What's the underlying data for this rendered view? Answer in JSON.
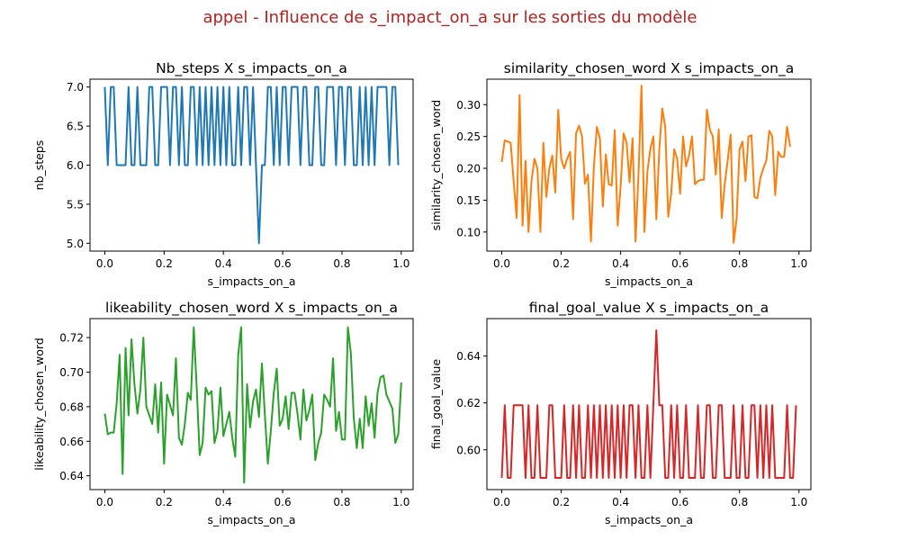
{
  "figure": {
    "title": "appel - Influence de s_impact_on_a sur les sorties du modèle",
    "title_color": "#b22222"
  },
  "chart_data": [
    {
      "type": "line",
      "title": "Nb_steps X s_impacts_on_a",
      "xlabel": "s_impacts_on_a",
      "ylabel": "nb_steps",
      "color": "#1f77b4",
      "xlim": [
        -0.05,
        1.04
      ],
      "ylim": [
        4.9,
        7.1
      ],
      "xticks": [
        0.0,
        0.2,
        0.4,
        0.6,
        0.8,
        1.0
      ],
      "xtick_labels": [
        "0.0",
        "0.2",
        "0.4",
        "0.6",
        "0.8",
        "1.0"
      ],
      "yticks": [
        5.0,
        5.5,
        6.0,
        6.5,
        7.0
      ],
      "ytick_labels": [
        "5.0",
        "5.5",
        "6.0",
        "6.5",
        "7.0"
      ],
      "x_start": 0.0,
      "x_step": 0.01,
      "values": [
        7,
        6,
        7,
        7,
        6,
        6,
        6,
        6,
        7,
        6,
        6,
        7,
        6,
        6,
        6,
        7,
        7,
        6,
        6,
        7,
        7,
        7,
        6,
        7,
        7,
        6,
        7,
        6,
        6,
        7,
        7,
        6,
        7,
        6,
        7,
        6,
        7,
        6,
        7,
        6,
        7,
        6,
        7,
        6,
        6,
        7,
        6,
        7,
        7,
        6,
        7,
        6,
        5,
        6,
        6,
        7,
        7,
        6,
        7,
        6,
        7,
        7,
        6,
        7,
        7,
        7,
        6,
        7,
        7,
        6,
        6,
        7,
        7,
        6,
        6,
        7,
        7,
        7,
        6,
        7,
        7,
        6,
        7,
        7,
        6,
        6,
        7,
        6,
        7,
        6,
        7,
        6,
        7,
        7,
        7,
        7,
        6,
        7,
        7,
        6
      ]
    },
    {
      "type": "line",
      "title": "similarity_chosen_word X s_impacts_on_a",
      "xlabel": "s_impacts_on_a",
      "ylabel": "similarity_chosen_word",
      "color": "#ff7f0e",
      "xlim": [
        -0.05,
        1.04
      ],
      "ylim": [
        0.07,
        0.34
      ],
      "xticks": [
        0.0,
        0.2,
        0.4,
        0.6,
        0.8,
        1.0
      ],
      "xtick_labels": [
        "0.0",
        "0.2",
        "0.4",
        "0.6",
        "0.8",
        "1.0"
      ],
      "yticks": [
        0.1,
        0.15,
        0.2,
        0.25,
        0.3
      ],
      "ytick_labels": [
        "0.10",
        "0.15",
        "0.20",
        "0.25",
        "0.30"
      ],
      "x_start": 0.0,
      "x_step": 0.01,
      "values": [
        0.21,
        0.244,
        0.242,
        0.24,
        0.18,
        0.122,
        0.315,
        0.11,
        0.212,
        0.1,
        0.18,
        0.215,
        0.2,
        0.1,
        0.24,
        0.155,
        0.2,
        0.22,
        0.162,
        0.292,
        0.215,
        0.2,
        0.215,
        0.226,
        0.12,
        0.255,
        0.267,
        0.25,
        0.176,
        0.19,
        0.085,
        0.204,
        0.265,
        0.247,
        0.14,
        0.222,
        0.175,
        0.173,
        0.26,
        0.11,
        0.173,
        0.255,
        0.24,
        0.178,
        0.247,
        0.085,
        0.19,
        0.33,
        0.1,
        0.195,
        0.231,
        0.25,
        0.12,
        0.23,
        0.294,
        0.265,
        0.124,
        0.16,
        0.23,
        0.215,
        0.16,
        0.25,
        0.203,
        0.22,
        0.25,
        0.175,
        0.18,
        0.182,
        0.182,
        0.292,
        0.261,
        0.25,
        0.19,
        0.261,
        0.122,
        0.175,
        0.212,
        0.253,
        0.083,
        0.12,
        0.23,
        0.242,
        0.18,
        0.25,
        0.252,
        0.155,
        0.153,
        0.185,
        0.2,
        0.212,
        0.259,
        0.25,
        0.158,
        0.226,
        0.218,
        0.218,
        0.265,
        0.234
      ]
    },
    {
      "type": "line",
      "title": "likeability_chosen_word X s_impacts_on_a",
      "xlabel": "s_impacts_on_a",
      "ylabel": "likeability_chosen_word",
      "color": "#2ca02c",
      "xlim": [
        -0.05,
        1.04
      ],
      "ylim": [
        0.632,
        0.731
      ],
      "xticks": [
        0.0,
        0.2,
        0.4,
        0.6,
        0.8,
        1.0
      ],
      "xtick_labels": [
        "0.0",
        "0.2",
        "0.4",
        "0.6",
        "0.8",
        "1.0"
      ],
      "yticks": [
        0.64,
        0.66,
        0.68,
        0.7,
        0.72
      ],
      "ytick_labels": [
        "0.64",
        "0.66",
        "0.68",
        "0.70",
        "0.72"
      ],
      "x_start": 0.0,
      "x_step": 0.01,
      "values": [
        0.676,
        0.664,
        0.665,
        0.665,
        0.682,
        0.71,
        0.641,
        0.714,
        0.675,
        0.719,
        0.693,
        0.676,
        0.69,
        0.72,
        0.68,
        0.675,
        0.67,
        0.693,
        0.665,
        0.694,
        0.647,
        0.687,
        0.681,
        0.675,
        0.708,
        0.662,
        0.658,
        0.67,
        0.688,
        0.684,
        0.726,
        0.691,
        0.652,
        0.659,
        0.691,
        0.687,
        0.689,
        0.659,
        0.666,
        0.691,
        0.663,
        0.67,
        0.677,
        0.662,
        0.651,
        0.71,
        0.726,
        0.636,
        0.693,
        0.668,
        0.683,
        0.69,
        0.674,
        0.705,
        0.675,
        0.647,
        0.666,
        0.688,
        0.702,
        0.669,
        0.673,
        0.686,
        0.667,
        0.688,
        0.688,
        0.676,
        0.661,
        0.69,
        0.672,
        0.678,
        0.687,
        0.649,
        0.659,
        0.665,
        0.687,
        0.684,
        0.68,
        0.708,
        0.666,
        0.677,
        0.661,
        0.661,
        0.726,
        0.711,
        0.673,
        0.656,
        0.673,
        0.656,
        0.686,
        0.669,
        0.682,
        0.662,
        0.688,
        0.697,
        0.698,
        0.687,
        0.683,
        0.679,
        0.659,
        0.664,
        0.694
      ]
    },
    {
      "type": "line",
      "title": "final_goal_value X s_impacts_on_a",
      "xlabel": "s_impacts_on_a",
      "ylabel": "final_goal_value",
      "color": "#d62728",
      "xlim": [
        -0.05,
        1.04
      ],
      "ylim": [
        0.583,
        0.656
      ],
      "xticks": [
        0.0,
        0.2,
        0.4,
        0.6,
        0.8,
        1.0
      ],
      "xtick_labels": [
        "0.0",
        "0.2",
        "0.4",
        "0.6",
        "0.8",
        "1.0"
      ],
      "yticks": [
        0.6,
        0.62,
        0.64
      ],
      "ytick_labels": [
        "0.60",
        "0.62",
        "0.64"
      ],
      "x_start": 0.0,
      "x_step": 0.01,
      "values": [
        0.588,
        0.619,
        0.588,
        0.588,
        0.619,
        0.619,
        0.619,
        0.619,
        0.588,
        0.619,
        0.588,
        0.588,
        0.619,
        0.588,
        0.588,
        0.588,
        0.619,
        0.619,
        0.588,
        0.588,
        0.588,
        0.619,
        0.588,
        0.588,
        0.619,
        0.588,
        0.619,
        0.588,
        0.588,
        0.619,
        0.588,
        0.619,
        0.588,
        0.619,
        0.588,
        0.619,
        0.588,
        0.619,
        0.588,
        0.619,
        0.588,
        0.619,
        0.588,
        0.619,
        0.619,
        0.588,
        0.619,
        0.588,
        0.588,
        0.619,
        0.588,
        0.619,
        0.651,
        0.619,
        0.619,
        0.588,
        0.588,
        0.619,
        0.588,
        0.619,
        0.588,
        0.588,
        0.619,
        0.588,
        0.588,
        0.588,
        0.619,
        0.588,
        0.588,
        0.619,
        0.619,
        0.588,
        0.588,
        0.619,
        0.619,
        0.588,
        0.588,
        0.588,
        0.619,
        0.588,
        0.588,
        0.619,
        0.588,
        0.588,
        0.619,
        0.619,
        0.588,
        0.619,
        0.588,
        0.619,
        0.588,
        0.619,
        0.588,
        0.588,
        0.588,
        0.588,
        0.619,
        0.588,
        0.588,
        0.619
      ]
    }
  ]
}
